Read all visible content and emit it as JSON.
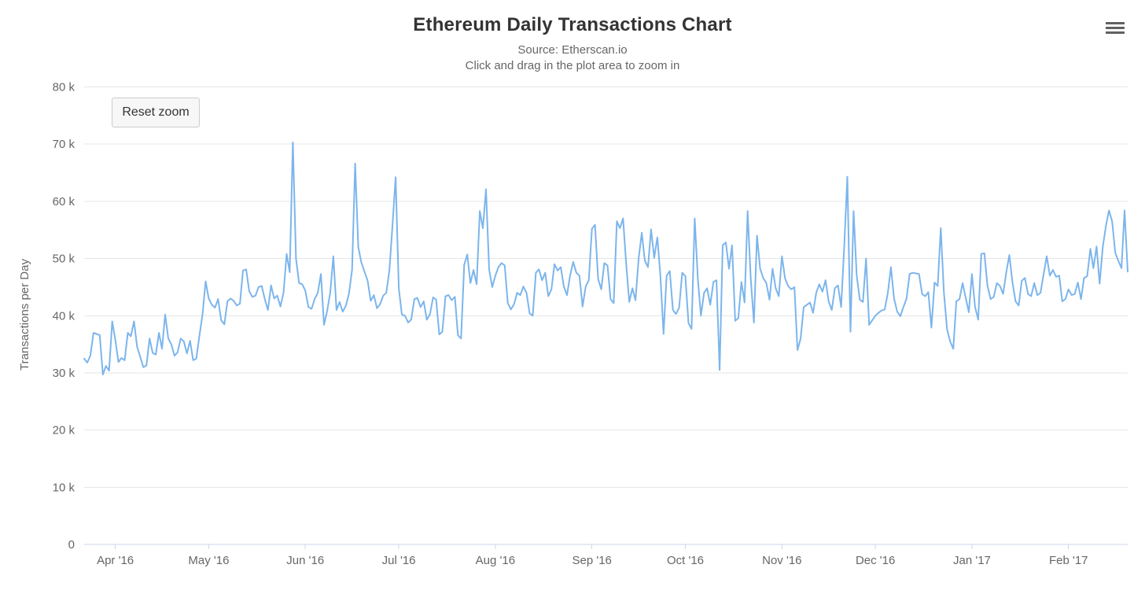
{
  "chart": {
    "title": "Ethereum Daily Transactions Chart",
    "subtitle_source": "Source: Etherscan.io",
    "subtitle_hint": "Click and drag in the plot area to zoom in",
    "y_axis_title": "Transactions per Day",
    "reset_zoom_label": "Reset zoom",
    "menu_icon": "hamburger-menu-icon"
  },
  "chart_data": {
    "type": "line",
    "title": "Ethereum Daily Transactions Chart",
    "subtitle": [
      "Source: Etherscan.io",
      "Click and drag in the plot area to zoom in"
    ],
    "xlabel": "",
    "ylabel": "Transactions per Day",
    "grid": true,
    "legend": false,
    "ylim_k": [
      0,
      80
    ],
    "values_unit": "thousands of transactions per day",
    "colors": {
      "line": "#7cb5ec",
      "grid": "#e6e6e6",
      "axis": "#ccd6eb",
      "label_text": "#666666",
      "title_text": "#333333",
      "button_bg": "#f7f7f7",
      "button_border": "#cccccc"
    },
    "y_ticks": [
      {
        "label": "0",
        "value": 0
      },
      {
        "label": "10 k",
        "value": 10
      },
      {
        "label": "20 k",
        "value": 20
      },
      {
        "label": "30 k",
        "value": 30
      },
      {
        "label": "40 k",
        "value": 40
      },
      {
        "label": "50 k",
        "value": 50
      },
      {
        "label": "60 k",
        "value": 60
      },
      {
        "label": "70 k",
        "value": 70
      },
      {
        "label": "80 k",
        "value": 80
      }
    ],
    "x_ticks": [
      {
        "label": "Apr '16",
        "day": 10
      },
      {
        "label": "May '16",
        "day": 40
      },
      {
        "label": "Jun '16",
        "day": 71
      },
      {
        "label": "Jul '16",
        "day": 101
      },
      {
        "label": "Aug '16",
        "day": 132
      },
      {
        "label": "Sep '16",
        "day": 163
      },
      {
        "label": "Oct '16",
        "day": 193
      },
      {
        "label": "Nov '16",
        "day": 224
      },
      {
        "label": "Dec '16",
        "day": 254
      },
      {
        "label": "Jan '17",
        "day": 285
      },
      {
        "label": "Feb '17",
        "day": 316
      }
    ],
    "series": [
      {
        "name": "Transactions per Day",
        "color": "#7cb5ec",
        "daily_values_k": [
          32.5,
          31.8,
          33.0,
          37.0,
          36.8,
          36.6,
          29.7,
          31.2,
          30.4,
          39.0,
          35.8,
          31.9,
          32.6,
          32.2,
          37.0,
          36.4,
          39.0,
          34.6,
          32.8,
          31.0,
          31.3,
          36.0,
          33.5,
          33.2,
          37.0,
          34.2,
          40.2,
          36.0,
          35.0,
          33.0,
          33.6,
          36.0,
          35.5,
          33.4,
          35.6,
          32.2,
          32.5,
          36.5,
          40.2,
          46.0,
          43.0,
          41.9,
          41.4,
          42.9,
          39.2,
          38.5,
          42.5,
          43.0,
          42.6,
          41.8,
          42.1,
          47.9,
          48.1,
          44.3,
          43.3,
          43.5,
          45.0,
          45.2,
          42.9,
          41.0,
          45.3,
          43.0,
          43.5,
          41.6,
          44.0,
          50.8,
          47.6,
          70.3,
          50.0,
          45.7,
          45.5,
          44.4,
          41.5,
          41.2,
          42.9,
          44.0,
          47.3,
          38.4,
          40.8,
          44.0,
          50.4,
          41.0,
          42.4,
          40.7,
          41.7,
          43.8,
          48.0,
          66.6,
          52.0,
          49.3,
          47.7,
          46.1,
          42.6,
          43.6,
          41.3,
          42.0,
          43.5,
          44.0,
          48.0,
          56.0,
          64.2,
          44.8,
          40.2,
          40.0,
          38.8,
          39.3,
          42.9,
          43.1,
          41.5,
          42.5,
          39.3,
          40.2,
          43.2,
          42.8,
          36.7,
          37.2,
          43.4,
          43.6,
          42.7,
          43.3,
          36.6,
          36.0,
          48.9,
          50.7,
          45.7,
          48.0,
          45.5,
          58.3,
          55.3,
          62.1,
          48.1,
          45.0,
          47.0,
          48.5,
          49.2,
          48.8,
          42.2,
          41.1,
          42.0,
          44.0,
          43.6,
          45.1,
          44.0,
          40.4,
          40.0,
          47.5,
          48.1,
          46.2,
          47.5,
          43.4,
          44.6,
          49.0,
          47.9,
          48.5,
          45.1,
          43.6,
          47.0,
          49.4,
          47.5,
          47.0,
          41.6,
          45.1,
          46.2,
          55.2,
          55.9,
          46.4,
          44.6,
          49.2,
          48.8,
          42.9,
          42.2,
          56.5,
          55.3,
          57.0,
          49.2,
          42.4,
          44.8,
          42.7,
          50.0,
          54.5,
          49.6,
          48.5,
          55.1,
          50.1,
          53.7,
          46.9,
          36.8,
          47.0,
          47.8,
          41.0,
          40.3,
          41.4,
          47.5,
          46.9,
          38.7,
          37.7,
          57.0,
          46.4,
          40.0,
          44.0,
          44.8,
          41.9,
          45.9,
          46.2,
          30.5,
          52.3,
          52.8,
          48.2,
          52.3,
          39.1,
          39.6,
          45.9,
          42.3,
          58.3,
          46.4,
          38.8,
          54.0,
          48.2,
          46.6,
          45.7,
          42.8,
          48.2,
          44.8,
          43.4,
          50.4,
          46.5,
          45.2,
          44.6,
          45.0,
          34.0,
          36.0,
          41.5,
          41.9,
          42.3,
          40.5,
          44.0,
          45.5,
          44.2,
          46.2,
          42.5,
          41.0,
          44.8,
          45.3,
          41.5,
          52.0,
          64.3,
          37.2,
          58.3,
          47.0,
          42.8,
          42.4,
          50.0,
          38.4,
          39.2,
          40.0,
          40.5,
          40.9,
          41.1,
          44.0,
          48.5,
          43.0,
          40.7,
          39.9,
          41.5,
          43.0,
          47.3,
          47.5,
          47.4,
          47.3,
          43.8,
          43.4,
          44.1,
          37.9,
          45.8,
          45.2,
          55.3,
          44.0,
          37.6,
          35.5,
          34.2,
          42.5,
          42.9,
          45.7,
          43.1,
          40.6,
          47.3,
          41.5,
          39.3,
          50.8,
          50.9,
          45.2,
          42.9,
          43.3,
          45.7,
          45.2,
          43.8,
          47.5,
          50.6,
          45.9,
          42.5,
          41.8,
          46.1,
          46.6,
          43.8,
          43.4,
          45.7,
          43.6,
          44.0,
          47.2,
          50.4,
          47.0,
          48.0,
          46.8,
          47.0,
          42.5,
          42.9,
          44.6,
          43.6,
          43.8,
          45.8,
          42.9,
          46.6,
          46.9,
          51.7,
          48.3,
          52.1,
          45.6,
          52.0,
          55.7,
          58.4,
          56.5,
          51.0,
          49.6,
          48.3,
          58.4,
          47.7
        ]
      }
    ]
  }
}
